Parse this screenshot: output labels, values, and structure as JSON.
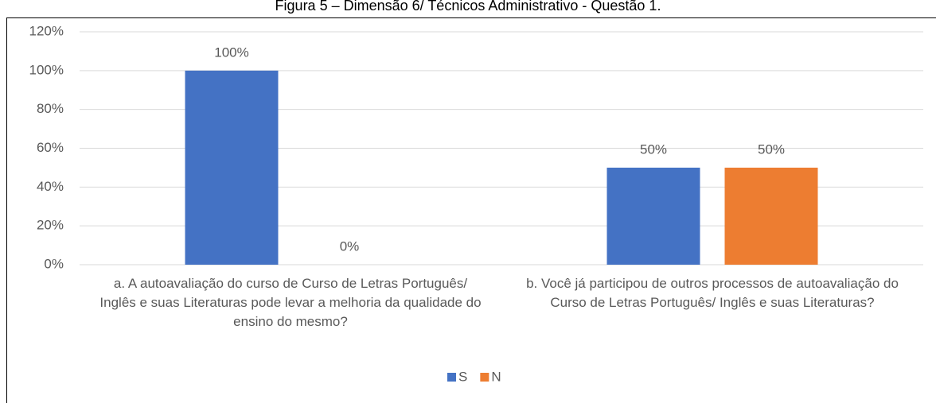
{
  "chart_data": {
    "type": "bar",
    "title": "Figura 5 – Dimensão 6/ Técnicos Administrativo - Questão 1.",
    "categories": [
      "a. A autoavaliação do curso de Curso de Letras Português/ Inglês e suas Literaturas pode levar a melhoria da qualidade do ensino do mesmo?",
      "b. Você já participou de outros processos de autoavaliação do Curso de Letras  Português/ Inglês e suas Literaturas?"
    ],
    "series": [
      {
        "name": "S",
        "color": "#4472c4",
        "values": [
          100,
          50
        ],
        "value_labels": [
          "100%",
          "50%"
        ]
      },
      {
        "name": "N",
        "color": "#ed7d31",
        "values": [
          0,
          50
        ],
        "value_labels": [
          "0%",
          "50%"
        ]
      }
    ],
    "ylim": [
      0,
      120
    ],
    "yticks": [
      {
        "value": 0,
        "label": "0%"
      },
      {
        "value": 20,
        "label": "20%"
      },
      {
        "value": 40,
        "label": "40%"
      },
      {
        "value": 60,
        "label": "60%"
      },
      {
        "value": 80,
        "label": "80%"
      },
      {
        "value": 100,
        "label": "100%"
      },
      {
        "value": 120,
        "label": "120%"
      }
    ],
    "grid": true,
    "legend": "bottom"
  }
}
